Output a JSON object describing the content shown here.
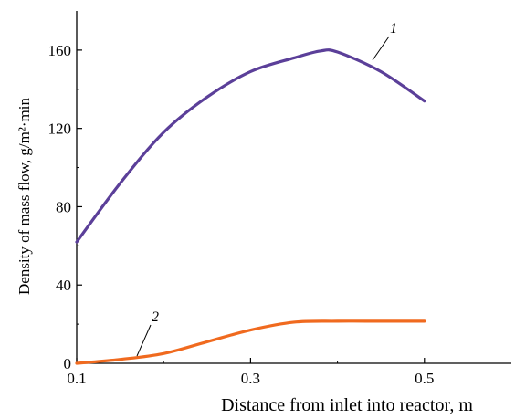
{
  "chart_data": {
    "type": "line",
    "xlabel": "Distance from inlet into reactor, m",
    "ylabel": "Density of mass flow, g/m²·min",
    "xlim": [
      0.1,
      0.6
    ],
    "ylim": [
      0,
      180
    ],
    "xticks": [
      0.1,
      0.3,
      0.5
    ],
    "xtick_labels": [
      "0.1",
      "0.3",
      "0.5"
    ],
    "yticks": [
      0,
      40,
      80,
      120,
      160
    ],
    "ytick_labels": [
      "0",
      "40",
      "80",
      "120",
      "160"
    ],
    "grid": false,
    "series": [
      {
        "name": "1",
        "color": "#5b3f99",
        "x": [
          0.1,
          0.15,
          0.2,
          0.25,
          0.3,
          0.35,
          0.38,
          0.4,
          0.45,
          0.5
        ],
        "y": [
          62,
          92,
          118,
          136,
          149,
          156,
          159.5,
          159,
          149,
          134
        ]
      },
      {
        "name": "2",
        "color": "#f06a1f",
        "x": [
          0.1,
          0.15,
          0.2,
          0.25,
          0.3,
          0.35,
          0.4,
          0.45,
          0.5
        ],
        "y": [
          0,
          2,
          5,
          11,
          17,
          21,
          21.5,
          21.5,
          21.5
        ]
      }
    ]
  }
}
